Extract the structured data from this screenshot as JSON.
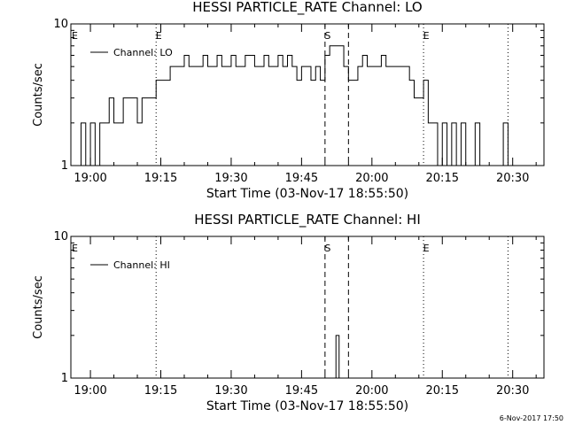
{
  "chart_data": [
    {
      "type": "line",
      "title": "HESSI PARTICLE_RATE Channel: LO",
      "xlabel": "Start Time (03-Nov-17 18:55:50)",
      "ylabel": "Counts/sec",
      "xlim": [
        "18:55:50",
        "20:36:40"
      ],
      "ylim": [
        1,
        10
      ],
      "y_scale": "log",
      "x_ticks": [
        "19:00",
        "19:15",
        "19:30",
        "19:45",
        "20:00",
        "20:15",
        "20:30"
      ],
      "y_ticks": [
        "1",
        "10"
      ],
      "legend": [
        {
          "label": "Channel: LO",
          "position": "top-left"
        }
      ],
      "markers": [
        {
          "time": "19:14:00",
          "style": "dotted",
          "label": "E"
        },
        {
          "time": "19:50:00",
          "style": "dashed",
          "label": "S"
        },
        {
          "time": "19:55:00",
          "style": "dashed",
          "label": ""
        },
        {
          "time": "20:11:00",
          "style": "dotted",
          "label": "E"
        },
        {
          "time": "20:29:00",
          "style": "dotted",
          "label": ""
        }
      ],
      "edge_labels": [
        {
          "text": "E",
          "position": "left"
        }
      ],
      "series": [
        {
          "name": "Channel: LO",
          "x": [
            "18:57",
            "18:58",
            "18:59",
            "19:00",
            "19:01",
            "19:02",
            "19:03",
            "19:04",
            "19:05",
            "19:06",
            "19:07",
            "19:08",
            "19:09",
            "19:10",
            "19:11",
            "19:12",
            "19:13",
            "19:14",
            "19:15",
            "19:16",
            "19:17",
            "19:18",
            "19:19",
            "19:20",
            "19:21",
            "19:22",
            "19:23",
            "19:24",
            "19:25",
            "19:26",
            "19:27",
            "19:28",
            "19:29",
            "19:30",
            "19:31",
            "19:32",
            "19:33",
            "19:34",
            "19:35",
            "19:36",
            "19:37",
            "19:38",
            "19:39",
            "19:40",
            "19:41",
            "19:42",
            "19:43",
            "19:44",
            "19:45",
            "19:46",
            "19:47",
            "19:48",
            "19:49",
            "19:50",
            "19:51",
            "19:52",
            "19:53",
            "19:54",
            "19:55",
            "19:56",
            "19:57",
            "19:58",
            "19:59",
            "20:00",
            "20:01",
            "20:02",
            "20:03",
            "20:04",
            "20:05",
            "20:06",
            "20:07",
            "20:08",
            "20:09",
            "20:10",
            "20:11",
            "20:12",
            "20:13",
            "20:14",
            "20:15",
            "20:16",
            "20:17",
            "20:18",
            "20:19",
            "20:20",
            "20:21",
            "20:22",
            "20:23",
            "20:24",
            "20:25",
            "20:26",
            "20:27",
            "20:28",
            "20:29"
          ],
          "values": [
            1,
            2,
            1,
            2,
            1,
            2,
            2,
            3,
            2,
            2,
            3,
            3,
            3,
            2,
            3,
            3,
            3,
            4,
            4,
            4,
            5,
            5,
            5,
            6,
            5,
            5,
            5,
            6,
            5,
            5,
            6,
            5,
            5,
            6,
            5,
            5,
            6,
            6,
            5,
            5,
            6,
            5,
            5,
            6,
            5,
            6,
            5,
            4,
            5,
            5,
            4,
            5,
            4,
            6,
            7,
            7,
            7,
            5,
            4,
            4,
            5,
            6,
            5,
            5,
            5,
            6,
            5,
            5,
            5,
            5,
            5,
            4,
            3,
            3,
            4,
            2,
            2,
            1,
            2,
            1,
            2,
            1,
            2,
            1,
            1,
            2,
            1,
            1,
            1,
            1,
            1,
            2,
            1
          ]
        }
      ]
    },
    {
      "type": "line",
      "title": "HESSI PARTICLE_RATE Channel: HI",
      "xlabel": "Start Time (03-Nov-17 18:55:50)",
      "ylabel": "Counts/sec",
      "xlim": [
        "18:55:50",
        "20:36:40"
      ],
      "ylim": [
        1,
        10
      ],
      "y_scale": "log",
      "x_ticks": [
        "19:00",
        "19:15",
        "19:30",
        "19:45",
        "20:00",
        "20:15",
        "20:30"
      ],
      "y_ticks": [
        "1",
        "10"
      ],
      "legend": [
        {
          "label": "Channel: HI",
          "position": "top-left"
        }
      ],
      "markers": [
        {
          "time": "19:14:00",
          "style": "dotted",
          "label": ""
        },
        {
          "time": "19:50:00",
          "style": "dashed",
          "label": "S"
        },
        {
          "time": "19:55:00",
          "style": "dashed",
          "label": ""
        },
        {
          "time": "20:11:00",
          "style": "dotted",
          "label": "E"
        },
        {
          "time": "20:29:00",
          "style": "dotted",
          "label": ""
        }
      ],
      "edge_labels": [
        {
          "text": "E",
          "position": "left"
        }
      ],
      "series": [
        {
          "name": "Channel: HI",
          "x": [
            "19:52:00",
            "19:52:20",
            "19:52:40",
            "19:53:00"
          ],
          "values": [
            1,
            2,
            2,
            1
          ]
        }
      ]
    }
  ],
  "footer": {
    "timestamp": "6-Nov-2017 17:50"
  }
}
